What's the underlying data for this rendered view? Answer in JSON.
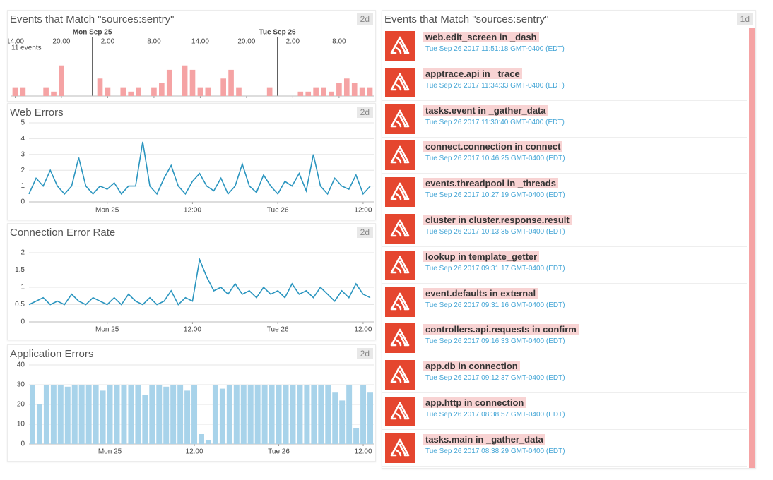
{
  "chart_data": [
    {
      "type": "bar",
      "title": "Events that Match \"sources:sentry\"",
      "badge": "2d",
      "annotation": "11 events",
      "color": "#f5a3a4",
      "xlim": [
        -10.5,
        36.5
      ],
      "ylim": [
        0,
        11
      ],
      "xticks": [
        {
          "value": -10,
          "label": "14:00"
        },
        {
          "value": -4,
          "label": "20:00"
        },
        {
          "value": 2,
          "label": "2:00"
        },
        {
          "value": 8,
          "label": "8:00"
        },
        {
          "value": 14,
          "label": "14:00"
        },
        {
          "value": 20,
          "label": "20:00"
        },
        {
          "value": 26,
          "label": "2:00"
        },
        {
          "value": 32,
          "label": "8:00"
        }
      ],
      "day_markers": [
        {
          "value": 0,
          "label": "Mon Sep 25"
        },
        {
          "value": 24,
          "label": "Tue Sep 26"
        }
      ],
      "x": [
        -10,
        -9,
        -8,
        -7,
        -6,
        -5,
        -4,
        -3,
        -2,
        -1,
        0,
        1,
        2,
        3,
        4,
        5,
        6,
        7,
        8,
        9,
        10,
        11,
        12,
        13,
        14,
        15,
        16,
        17,
        18,
        19,
        20,
        21,
        22,
        23,
        24,
        25,
        26,
        27,
        28,
        29,
        30,
        31,
        32,
        33,
        34,
        35,
        36
      ],
      "values": [
        2,
        2,
        0,
        0,
        2,
        1,
        7,
        0,
        0,
        0,
        0,
        4,
        2,
        0,
        2,
        1,
        2,
        0,
        2,
        3,
        6,
        0,
        7,
        6,
        2,
        2,
        0,
        4,
        6,
        2,
        0,
        0,
        0,
        2,
        0,
        0,
        0,
        1,
        1,
        2,
        2,
        1,
        3,
        4,
        3,
        2,
        2
      ]
    },
    {
      "type": "line",
      "title": "Web Errors",
      "badge": "2d",
      "color": "#2a95bf",
      "grid": true,
      "xlim": [
        -11,
        37.5
      ],
      "ylim": [
        0,
        5
      ],
      "yticks": [
        0,
        1,
        2,
        3,
        4,
        5
      ],
      "xticks": [
        {
          "value": 0,
          "label": "Mon 25"
        },
        {
          "value": 12,
          "label": "12:00"
        },
        {
          "value": 24,
          "label": "Tue 26"
        },
        {
          "value": 36,
          "label": "12:00"
        }
      ],
      "x": [
        -11,
        -10,
        -9,
        -8,
        -7,
        -6,
        -5,
        -4,
        -3,
        -2,
        -1,
        0,
        1,
        2,
        3,
        4,
        5,
        6,
        7,
        8,
        9,
        10,
        11,
        12,
        13,
        14,
        15,
        16,
        17,
        18,
        19,
        20,
        21,
        22,
        23,
        24,
        25,
        26,
        27,
        28,
        29,
        30,
        31,
        32,
        33,
        34,
        35,
        36,
        37
      ],
      "values": [
        0.5,
        1.5,
        1,
        2,
        1,
        0.5,
        1,
        2.8,
        1,
        0.5,
        1,
        0.8,
        1.2,
        0.5,
        1,
        1,
        3.8,
        1,
        0.5,
        1.5,
        2.3,
        1,
        0.5,
        1.3,
        1.8,
        1,
        0.7,
        1.5,
        0.5,
        1,
        2.4,
        1,
        0.6,
        1.7,
        1,
        0.5,
        1.3,
        1,
        1.8,
        0.7,
        3,
        1,
        0.5,
        1.5,
        1,
        0.8,
        1.7,
        0.5,
        1
      ]
    },
    {
      "type": "line",
      "title": "Connection Error Rate",
      "badge": "2d",
      "color": "#2a95bf",
      "grid": true,
      "xlim": [
        -11,
        37.5
      ],
      "ylim": [
        0,
        2
      ],
      "yticks": [
        0,
        0.5,
        1,
        1.5,
        2
      ],
      "xticks": [
        {
          "value": 0,
          "label": "Mon 25"
        },
        {
          "value": 12,
          "label": "12:00"
        },
        {
          "value": 24,
          "label": "Tue 26"
        },
        {
          "value": 36,
          "label": "12:00"
        }
      ],
      "x": [
        -11,
        -10,
        -9,
        -8,
        -7,
        -6,
        -5,
        -4,
        -3,
        -2,
        -1,
        0,
        1,
        2,
        3,
        4,
        5,
        6,
        7,
        8,
        9,
        10,
        11,
        12,
        13,
        14,
        15,
        16,
        17,
        18,
        19,
        20,
        21,
        22,
        23,
        24,
        25,
        26,
        27,
        28,
        29,
        30,
        31,
        32,
        33,
        34,
        35,
        36,
        37
      ],
      "values": [
        0.5,
        0.6,
        0.7,
        0.5,
        0.6,
        0.5,
        0.8,
        0.6,
        0.5,
        0.7,
        0.6,
        0.5,
        0.7,
        0.5,
        0.8,
        0.6,
        0.5,
        0.7,
        0.5,
        0.6,
        0.9,
        0.5,
        0.7,
        0.6,
        1.8,
        1.3,
        0.9,
        1.0,
        0.8,
        1.1,
        0.8,
        0.9,
        0.7,
        1.0,
        0.8,
        0.9,
        0.7,
        1.1,
        0.8,
        0.9,
        0.7,
        1.0,
        0.8,
        0.6,
        0.9,
        0.7,
        1.1,
        0.8,
        0.7
      ]
    },
    {
      "type": "bar",
      "title": "Application Errors",
      "badge": "2d",
      "color": "#a8d3ea",
      "grid": true,
      "xlim": [
        -11.5,
        37.5
      ],
      "ylim": [
        0,
        40
      ],
      "yticks": [
        0,
        10,
        20,
        30,
        40
      ],
      "xticks": [
        {
          "value": 0,
          "label": "Mon 25"
        },
        {
          "value": 12,
          "label": "12:00"
        },
        {
          "value": 24,
          "label": "Tue 26"
        },
        {
          "value": 36,
          "label": "12:00"
        }
      ],
      "x": [
        -11,
        -10,
        -9,
        -8,
        -7,
        -6,
        -5,
        -4,
        -3,
        -2,
        -1,
        0,
        1,
        2,
        3,
        4,
        5,
        6,
        7,
        8,
        9,
        10,
        11,
        12,
        13,
        14,
        15,
        16,
        17,
        18,
        19,
        20,
        21,
        22,
        23,
        24,
        25,
        26,
        27,
        28,
        29,
        30,
        31,
        32,
        33,
        34,
        35,
        36,
        37
      ],
      "values": [
        30,
        20,
        30,
        30,
        30,
        29,
        30,
        30,
        30,
        30,
        27,
        30,
        30,
        30,
        30,
        30,
        25,
        30,
        30,
        29,
        30,
        30,
        27,
        30,
        5,
        2,
        30,
        28,
        30,
        30,
        30,
        30,
        30,
        30,
        30,
        30,
        30,
        30,
        30,
        30,
        30,
        30,
        30,
        26,
        22,
        30,
        8,
        30,
        26
      ]
    }
  ],
  "event_stream": {
    "title": "Events that Match \"sources:sentry\"",
    "badge": "1d",
    "events": [
      {
        "title": "web.edit_screen in _dash",
        "time": "Tue Sep 26 2017 11:51:18 GMT-0400 (EDT)"
      },
      {
        "title": "apptrace.api in _trace",
        "time": "Tue Sep 26 2017 11:34:33 GMT-0400 (EDT)"
      },
      {
        "title": "tasks.event in _gather_data",
        "time": "Tue Sep 26 2017 11:30:40 GMT-0400 (EDT)"
      },
      {
        "title": "connect.connection in connect",
        "time": "Tue Sep 26 2017 10:46:25 GMT-0400 (EDT)"
      },
      {
        "title": "events.threadpool in _threads",
        "time": "Tue Sep 26 2017 10:27:19 GMT-0400 (EDT)"
      },
      {
        "title": "cluster in cluster.response.result",
        "time": "Tue Sep 26 2017 10:13:35 GMT-0400 (EDT)"
      },
      {
        "title": "lookup in template_getter",
        "time": "Tue Sep 26 2017 09:31:17 GMT-0400 (EDT)"
      },
      {
        "title": "event.defaults in external",
        "time": "Tue Sep 26 2017 09:31:16 GMT-0400 (EDT)"
      },
      {
        "title": "controllers.api.requests in confirm",
        "time": "Tue Sep 26 2017 09:16:33 GMT-0400 (EDT)"
      },
      {
        "title": "app.db in connection",
        "time": "Tue Sep 26 2017 09:12:37 GMT-0400 (EDT)"
      },
      {
        "title": "app.http in connection",
        "time": "Tue Sep 26 2017 08:38:57 GMT-0400 (EDT)"
      },
      {
        "title": "tasks.main in _gather_data",
        "time": "Tue Sep 26 2017 08:38:29 GMT-0400 (EDT)"
      }
    ]
  }
}
